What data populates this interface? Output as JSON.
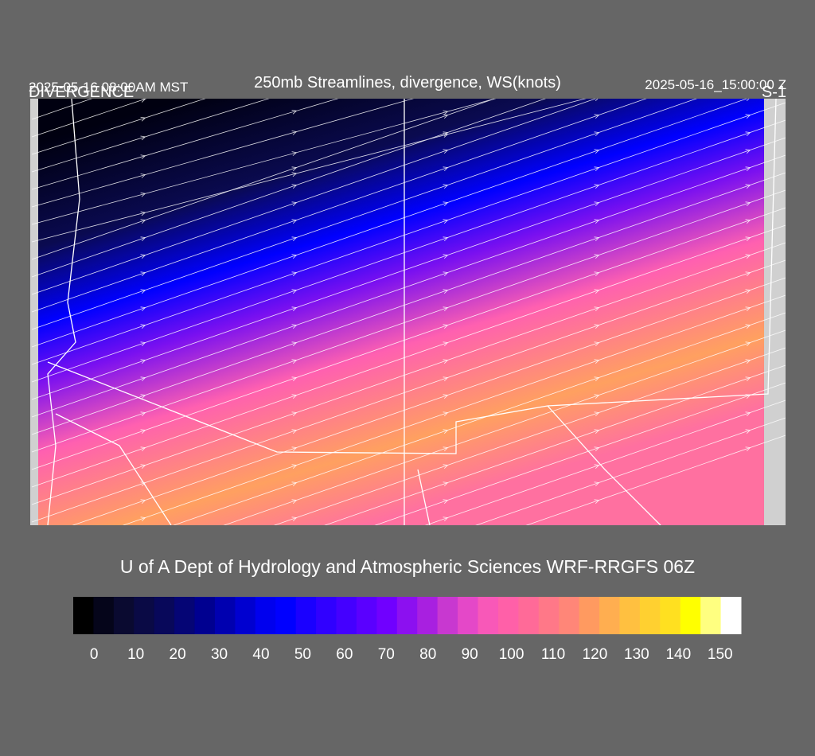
{
  "header": {
    "title": "250mb Streamlines, divergence, WS(knots)",
    "valid_local": "2025-05-16 08:00AM MST",
    "field": "DIVERGENCE",
    "valid_utc": "2025-05-16_15:00:00 Z",
    "domain": "S-1"
  },
  "footer": {
    "credit": "U of A Dept of Hydrology and Atmospheric Sciences WRF-RRGFS 06Z"
  },
  "colorbar": {
    "xlim": [
      -5,
      155
    ],
    "ticks": [
      0,
      10,
      20,
      30,
      40,
      50,
      60,
      70,
      80,
      90,
      100,
      110,
      120,
      130,
      140,
      150
    ],
    "colors": [
      "#000000",
      "#05051a",
      "#0a0a30",
      "#0a0a45",
      "#08085a",
      "#050575",
      "#000090",
      "#0000b0",
      "#0000d0",
      "#0000ee",
      "#0000ff",
      "#1a00ff",
      "#3000ff",
      "#4400ff",
      "#5a00ff",
      "#7000ff",
      "#8c10f0",
      "#a820e0",
      "#c838d0",
      "#e448c8",
      "#f858b8",
      "#ff60a8",
      "#ff6a98",
      "#ff7888",
      "#ff8678",
      "#ff9a60",
      "#ffae50",
      "#ffc040",
      "#ffd030",
      "#ffe020",
      "#ffff00",
      "#ffff80",
      "#ffffff"
    ]
  }
}
